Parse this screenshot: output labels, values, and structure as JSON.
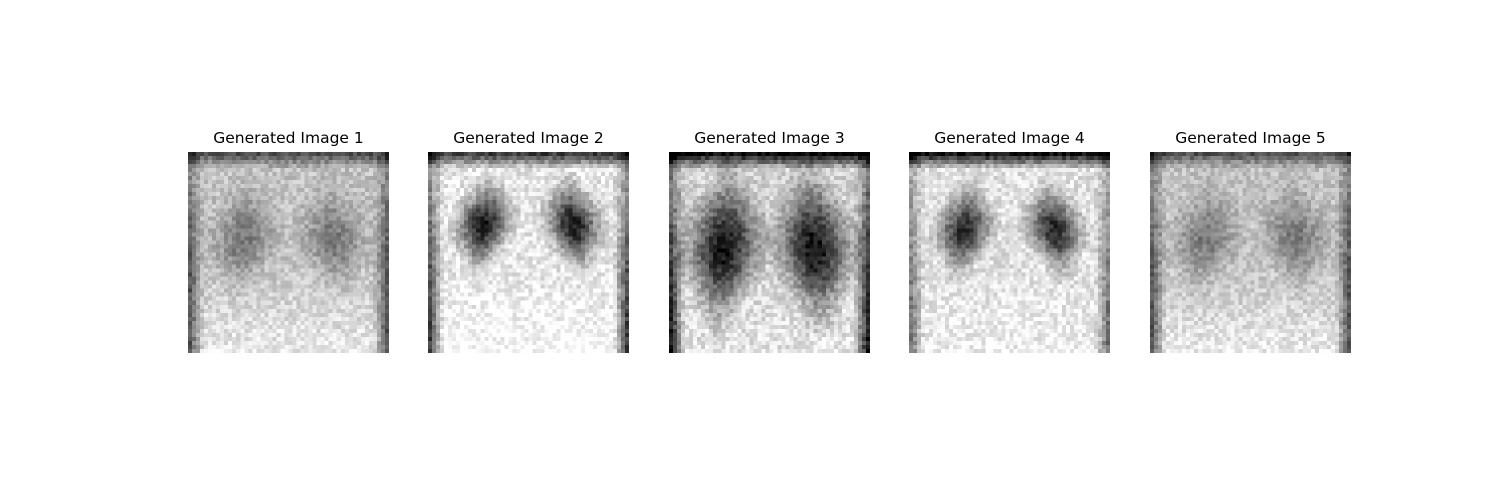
{
  "figure": {
    "panels": [
      {
        "title": "Generated Image 1",
        "variant": "soft-wide"
      },
      {
        "title": "Generated Image 2",
        "variant": "high-contrast-upper"
      },
      {
        "title": "Generated Image 3",
        "variant": "dark-large-lungs"
      },
      {
        "title": "Generated Image 4",
        "variant": "dark-upper"
      },
      {
        "title": "Generated Image 5",
        "variant": "soft-wide"
      }
    ]
  }
}
